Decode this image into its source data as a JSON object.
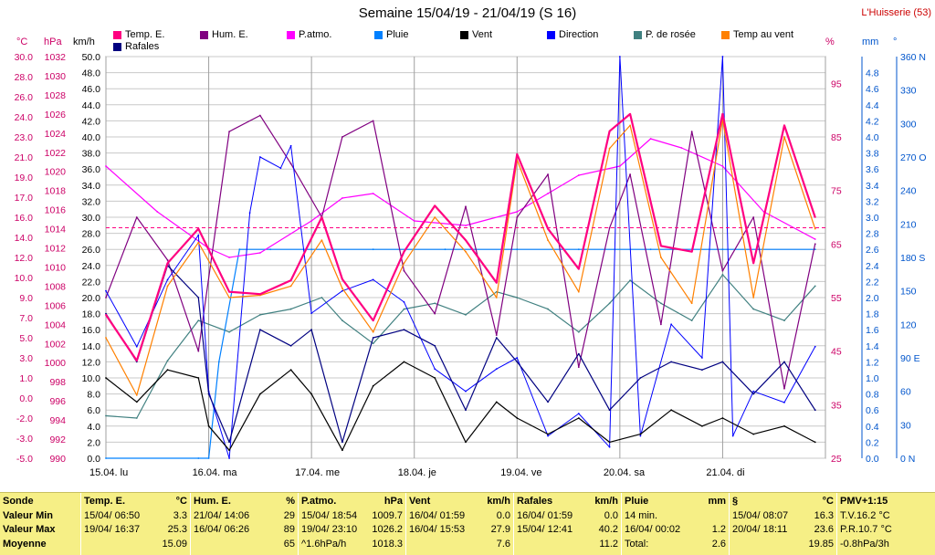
{
  "title": "Semaine 15/04/19 - 21/04/19 (S 16)",
  "station": "L'Huisserie (53)",
  "legend": [
    {
      "label": "Temp. E.",
      "color": "#ff0080"
    },
    {
      "label": "Hum. E.",
      "color": "#800080"
    },
    {
      "label": "P.atmo.",
      "color": "#ff00ff"
    },
    {
      "label": "Pluie",
      "color": "#0080ff"
    },
    {
      "label": "Vent",
      "color": "#000000"
    },
    {
      "label": "Direction",
      "color": "#0000ff"
    },
    {
      "label": "P. de rosée",
      "color": "#408080"
    },
    {
      "label": "Temp au vent",
      "color": "#ff8000"
    },
    {
      "label": "Rafales",
      "color": "#000080"
    }
  ],
  "units": {
    "temp": "°C",
    "press": "hPa",
    "wind": "km/h",
    "hum": "%",
    "rain": "mm",
    "dir": "°"
  },
  "axes": {
    "temp_ticks": [
      "30.0",
      "28.0",
      "26.0",
      "24.0",
      "23.0",
      "21.0",
      "19.0",
      "17.0",
      "16.0",
      "14.0",
      "12.0",
      "10.0",
      "9.0",
      "7.0",
      "5.0",
      "3.0",
      "1.0",
      "0.0",
      "-2.0",
      "-3.0",
      "-5.0"
    ],
    "press_ticks": [
      "1032",
      "1030",
      "1028",
      "1026",
      "1024",
      "1022",
      "1020",
      "1018",
      "1016",
      "1014",
      "1012",
      "1010",
      "1008",
      "1006",
      "1004",
      "1002",
      "1000",
      "998",
      "996",
      "994",
      "992",
      "990"
    ],
    "wind_ticks": [
      "50.0",
      "48.0",
      "46.0",
      "44.0",
      "42.0",
      "40.0",
      "38.0",
      "36.0",
      "34.0",
      "32.0",
      "30.0",
      "28.0",
      "26.0",
      "24.0",
      "22.0",
      "20.0",
      "18.0",
      "16.0",
      "14.0",
      "12.0",
      "10.0",
      "8.0",
      "6.0",
      "4.0",
      "2.0",
      "0.0"
    ],
    "hum_ticks": [
      "95",
      "85",
      "75",
      "65",
      "55",
      "45",
      "35",
      "25"
    ],
    "rain_ticks": [
      "4.8",
      "4.6",
      "4.4",
      "4.2",
      "4.0",
      "3.8",
      "3.6",
      "3.4",
      "3.2",
      "3.0",
      "2.8",
      "2.6",
      "2.4",
      "2.2",
      "2.0",
      "1.8",
      "1.6",
      "1.4",
      "1.2",
      "1.0",
      "0.8",
      "0.6",
      "0.4",
      "0.2",
      "0.0"
    ],
    "dir_ticks": [
      "360 N",
      "330",
      "300",
      "270 O",
      "240",
      "210",
      "180 S",
      "150",
      "120",
      "90 E",
      "60",
      "30",
      "0 N"
    ],
    "x_ticks": [
      "15.04. lu",
      "16.04. ma",
      "17.04. me",
      "18.04. je",
      "19.04. ve",
      "20.04. sa",
      "21.04. di"
    ]
  },
  "chart_data": {
    "type": "line",
    "title": "Semaine 15/04/19 - 21/04/19 (S 16)",
    "x_unit": "days since 15.04 00:00",
    "series": [
      {
        "name": "Temp. E.",
        "unit": "°C",
        "color": "#ff0080",
        "x": [
          0,
          0.3,
          0.6,
          0.9,
          1.2,
          1.5,
          1.8,
          2.1,
          2.3,
          2.6,
          2.9,
          3.2,
          3.5,
          3.8,
          4.0,
          4.3,
          4.6,
          4.9,
          5.1,
          5.4,
          5.7,
          6.0,
          6.3,
          6.6,
          6.9
        ],
        "y": [
          7.5,
          3.5,
          12,
          15,
          9.5,
          9.3,
          10.5,
          16,
          10.6,
          7,
          13,
          17,
          14,
          10.3,
          21.5,
          15,
          11.5,
          23.5,
          25,
          13.5,
          13,
          25,
          12,
          24,
          16
        ]
      },
      {
        "name": "Temp au vent",
        "unit": "°C",
        "color": "#ff8000",
        "x": [
          0,
          0.3,
          0.6,
          0.9,
          1.2,
          1.5,
          1.8,
          2.1,
          2.3,
          2.6,
          2.9,
          3.2,
          3.5,
          3.8,
          4.0,
          4.3,
          4.6,
          4.9,
          5.1,
          5.4,
          5.7,
          6.0,
          6.3,
          6.6,
          6.9
        ],
        "y": [
          5.5,
          0.5,
          10,
          13.8,
          9,
          9.2,
          10,
          14,
          9.8,
          6,
          12,
          16,
          13,
          9,
          21,
          14,
          9.5,
          22,
          24,
          12.5,
          8.5,
          24.5,
          9,
          23,
          15
        ]
      },
      {
        "name": "P. de rosée",
        "unit": "°C",
        "color": "#408080",
        "x": [
          0,
          0.3,
          0.6,
          0.9,
          1.2,
          1.5,
          1.8,
          2.1,
          2.3,
          2.6,
          2.9,
          3.2,
          3.5,
          3.8,
          4.0,
          4.3,
          4.6,
          4.9,
          5.1,
          5.4,
          5.7,
          6.0,
          6.3,
          6.6,
          6.9
        ],
        "y": [
          -1.3,
          -1.5,
          3.5,
          7,
          6,
          7.5,
          8,
          9,
          7,
          5,
          8,
          8.5,
          7.5,
          9.5,
          9,
          8,
          6,
          8.5,
          10.5,
          8.5,
          7,
          11,
          8,
          7,
          10
        ]
      },
      {
        "name": "Hum. E.",
        "unit": "%",
        "color": "#800080",
        "x": [
          0,
          0.3,
          0.6,
          0.9,
          1.2,
          1.5,
          1.8,
          2.1,
          2.3,
          2.6,
          2.9,
          3.2,
          3.5,
          3.8,
          4.0,
          4.3,
          4.6,
          4.9,
          5.1,
          5.4,
          5.7,
          6.0,
          6.3,
          6.6,
          6.9
        ],
        "y": [
          55,
          70,
          62,
          45,
          86,
          89,
          80,
          70,
          85,
          88,
          60,
          52,
          72,
          48,
          70,
          78,
          42,
          68,
          78,
          50,
          86,
          60,
          70,
          38,
          65
        ]
      },
      {
        "name": "P.atmo.",
        "unit": "hPa",
        "color": "#ff00ff",
        "x": [
          0,
          0.5,
          1.0,
          1.2,
          1.5,
          2.0,
          2.3,
          2.6,
          3.0,
          3.5,
          4.0,
          4.3,
          4.6,
          5.0,
          5.3,
          5.6,
          6.0,
          6.4,
          6.9
        ],
        "y": [
          1022,
          1017,
          1013,
          1012,
          1012.5,
          1016,
          1018.5,
          1019,
          1016,
          1015.5,
          1017,
          1019,
          1021,
          1022,
          1025,
          1024,
          1022,
          1017,
          1014
        ]
      },
      {
        "name": "Vent",
        "unit": "km/h",
        "color": "#000000",
        "x": [
          0,
          0.3,
          0.6,
          0.9,
          1.0,
          1.2,
          1.5,
          1.8,
          2.0,
          2.3,
          2.6,
          2.9,
          3.2,
          3.5,
          3.8,
          4.0,
          4.3,
          4.6,
          4.9,
          5.2,
          5.5,
          5.8,
          6.0,
          6.3,
          6.6,
          6.9
        ],
        "y": [
          10,
          7,
          11,
          10,
          4,
          1,
          8,
          11,
          8,
          1,
          9,
          12,
          10,
          2,
          7,
          5,
          3,
          5,
          2,
          3,
          6,
          4,
          5,
          3,
          4,
          2
        ]
      },
      {
        "name": "Rafales",
        "unit": "km/h",
        "color": "#000080",
        "x": [
          0,
          0.3,
          0.6,
          0.9,
          1.0,
          1.2,
          1.5,
          1.8,
          2.0,
          2.3,
          2.6,
          2.9,
          3.2,
          3.5,
          3.8,
          4.0,
          4.3,
          4.6,
          4.9,
          5.2,
          5.5,
          5.8,
          6.0,
          6.3,
          6.6,
          6.9
        ],
        "y": [
          18,
          12,
          24,
          20,
          8,
          2,
          16,
          14,
          16,
          2,
          15,
          16,
          14,
          6,
          15,
          12,
          7,
          13,
          6,
          10,
          12,
          11,
          12,
          8,
          12,
          6
        ]
      },
      {
        "name": "Direction",
        "unit": "°",
        "color": "#0000ff",
        "x": [
          0,
          0.3,
          0.6,
          0.9,
          1.0,
          1.2,
          1.4,
          1.5,
          1.7,
          1.8,
          2.0,
          2.3,
          2.6,
          2.9,
          3.2,
          3.5,
          3.8,
          4.0,
          4.3,
          4.6,
          4.9,
          5.0,
          5.2,
          5.5,
          5.8,
          6.0,
          6.1,
          6.3,
          6.6,
          6.9
        ],
        "y": [
          150,
          100,
          160,
          200,
          60,
          0,
          220,
          270,
          260,
          280,
          130,
          150,
          160,
          140,
          80,
          60,
          80,
          90,
          20,
          40,
          10,
          360,
          20,
          120,
          90,
          360,
          20,
          60,
          50,
          100
        ]
      },
      {
        "name": "Pluie",
        "unit": "mm",
        "color": "#0080ff",
        "x": [
          0,
          0.9,
          1.0,
          1.1,
          1.3,
          1.6,
          2.0,
          2.6,
          3.3,
          4.0,
          4.6,
          5.3,
          6.0,
          6.9
        ],
        "y": [
          0,
          0,
          0,
          1.2,
          2.6,
          2.6,
          2.6,
          2.6,
          2.6,
          2.6,
          2.6,
          2.6,
          2.6,
          2.6
        ]
      }
    ]
  },
  "stats": {
    "row_labels": [
      "Sonde",
      "Valeur Min",
      "Valeur Max",
      "Moyenne"
    ],
    "columns": [
      {
        "name": "Temp. E.",
        "unit": "°C",
        "min": [
          "15/04/ 06:50",
          "3.3"
        ],
        "max": [
          "19/04/ 16:37",
          "25.3"
        ],
        "avg": [
          "",
          "15.09"
        ]
      },
      {
        "name": "Hum. E.",
        "unit": "%",
        "min": [
          "21/04/ 14:06",
          "29"
        ],
        "max": [
          "16/04/ 06:26",
          "89"
        ],
        "avg": [
          "",
          "65"
        ]
      },
      {
        "name": "P.atmo.",
        "unit": "hPa",
        "min": [
          "15/04/ 18:54",
          "1009.7"
        ],
        "max": [
          "19/04/ 23:10",
          "1026.2"
        ],
        "avg": [
          "^1.6hPa/h",
          "1018.3"
        ]
      },
      {
        "name": "Vent",
        "unit": "km/h",
        "min": [
          "16/04/ 01:59",
          "0.0"
        ],
        "max": [
          "16/04/ 15:53",
          "27.9"
        ],
        "avg": [
          "",
          "7.6"
        ]
      },
      {
        "name": "Rafales",
        "unit": "km/h",
        "min": [
          "16/04/ 01:59",
          "0.0"
        ],
        "max": [
          "15/04/ 12:41",
          "40.2"
        ],
        "avg": [
          "",
          "11.2"
        ]
      },
      {
        "name": "Pluie",
        "unit": "mm",
        "min": [
          "14 min.",
          ""
        ],
        "max": [
          "16/04/ 00:02",
          "1.2"
        ],
        "avg": [
          "Total:",
          "2.6"
        ]
      },
      {
        "name": "§",
        "unit": "°C",
        "min": [
          "15/04/ 08:07",
          "16.3"
        ],
        "max": [
          "20/04/ 18:11",
          "23.6"
        ],
        "avg": [
          "",
          "19.85"
        ]
      }
    ],
    "pmv": {
      "title": "PMV+1:15",
      "line1": "T.V.16.2 °C",
      "line2": "P.R.10.7 °C",
      "line3": "-0.8hPa/3h"
    }
  }
}
